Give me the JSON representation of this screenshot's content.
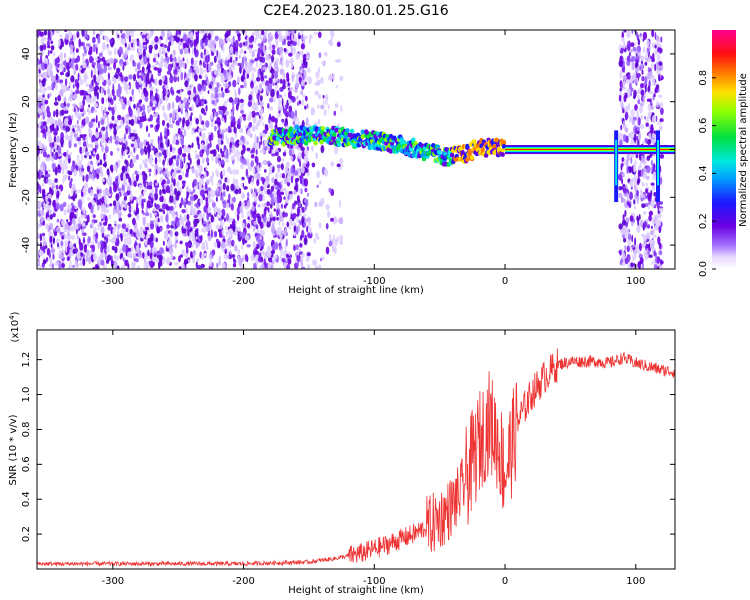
{
  "title": "C2E4.2023.180.01.25.G16",
  "colors": {
    "snr_line": "#ee3333",
    "axis": "#000000"
  },
  "chart_data": [
    {
      "type": "heatmap",
      "xlabel": "Height of straight line (km)",
      "ylabel": "Frequency (Hz)",
      "xlim": [
        -358,
        130
      ],
      "ylim": [
        -50,
        50
      ],
      "x_ticks": [
        -300,
        -200,
        -100,
        0,
        100
      ],
      "x_tick_labels": [
        "-300",
        "-200",
        "-100",
        "0",
        "100"
      ],
      "y_ticks": [
        -40,
        -20,
        0,
        20,
        40
      ],
      "y_tick_labels": [
        "-40",
        "-20",
        "0",
        "20",
        "40"
      ],
      "colorbar": {
        "label": "Normalized spectral amplitude",
        "range": [
          0,
          1
        ],
        "ticks": [
          0,
          0.2,
          0.4,
          0.6,
          0.8
        ],
        "tick_labels": [
          "0.0",
          "0.2",
          "0.4",
          "0.6",
          "0.8"
        ],
        "colormap": "rainbow (white-violet-blue-cyan-green-yellow-red-magenta)"
      },
      "features": {
        "noise_region_x": [
          -358,
          -150
        ],
        "noise_region_x_right": [
          88,
          120
        ],
        "signal_trace": {
          "x": [
            -180,
            -160,
            -140,
            -120,
            -100,
            -80,
            -60,
            -45,
            -30,
            -20,
            -10,
            0,
            40,
            85,
            100,
            130
          ],
          "frequency": [
            5,
            6,
            6,
            5,
            4,
            2,
            -1,
            -3,
            -2,
            1,
            1,
            0,
            0,
            0,
            0,
            0
          ]
        },
        "spikes_x": [
          85,
          117
        ]
      }
    },
    {
      "type": "line",
      "xlabel": "Height of straight line (km)",
      "ylabel": "SNR (10 * v/v)",
      "y_scale_label": "(x10",
      "y_scale_exp": "4",
      "y_scale_close": ")",
      "xlim": [
        -358,
        130
      ],
      "ylim": [
        0,
        1.37
      ],
      "x_ticks": [
        -300,
        -200,
        -100,
        0,
        100
      ],
      "x_tick_labels": [
        "-300",
        "-200",
        "-100",
        "0",
        "100"
      ],
      "y_ticks": [
        0.2,
        0.4,
        0.6,
        0.8,
        1.0,
        1.2
      ],
      "y_tick_labels": [
        "0.2",
        "0.4",
        "0.6",
        "0.8",
        "1.0",
        "1.2"
      ],
      "series": [
        {
          "x": [
            -358,
            -300,
            -250,
            -200,
            -150,
            -130,
            -110,
            -90,
            -70,
            -55,
            -45,
            -35,
            -28,
            -20,
            -12,
            -5,
            0,
            10,
            20,
            30,
            40,
            50,
            60,
            70,
            80,
            90,
            100,
            110,
            120,
            130
          ],
          "y": [
            0.03,
            0.03,
            0.03,
            0.03,
            0.04,
            0.06,
            0.09,
            0.14,
            0.2,
            0.26,
            0.32,
            0.42,
            0.55,
            0.72,
            0.85,
            0.72,
            0.55,
            0.85,
            1.0,
            1.1,
            1.17,
            1.19,
            1.19,
            1.19,
            1.18,
            1.21,
            1.18,
            1.16,
            1.14,
            1.13
          ]
        }
      ]
    }
  ]
}
